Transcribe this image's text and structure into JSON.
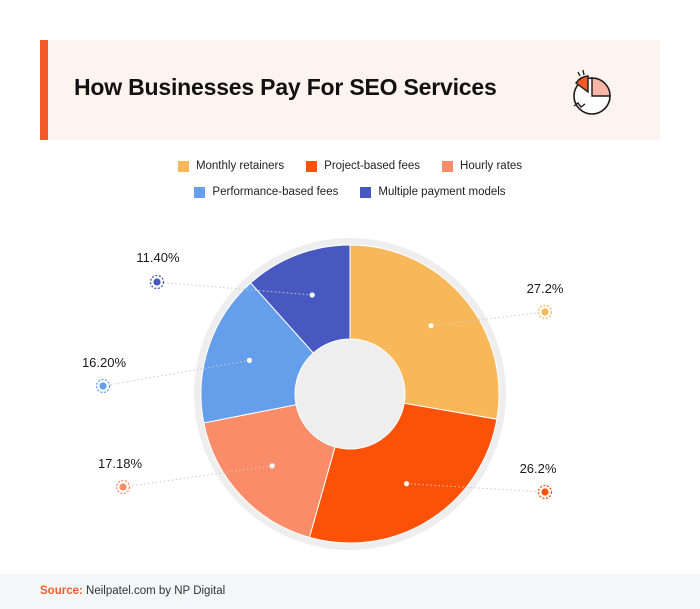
{
  "header": {
    "title": "How Businesses Pay For SEO Services"
  },
  "colors": {
    "accent": "#f35a2a",
    "header_bg": "#fdf3ef"
  },
  "chart_data": {
    "type": "pie",
    "donut": true,
    "legend": "top-center",
    "title": "",
    "categories": [
      "Monthly retainers",
      "Project-based fees",
      "Hourly rates",
      "Performance-based fees",
      "Multiple payment models"
    ],
    "labels": [
      "27.2%",
      "26.2%",
      "17.18%",
      "16.20%",
      "11.40%"
    ],
    "values": [
      27.2,
      26.2,
      17.18,
      16.2,
      11.4
    ],
    "colors": [
      "#f8b85a",
      "#fb5207",
      "#fb8c6a",
      "#659fec",
      "#4758c0"
    ]
  },
  "footer": {
    "source_label": "Source:",
    "source_text": " Neilpatel.com by NP Digital"
  }
}
